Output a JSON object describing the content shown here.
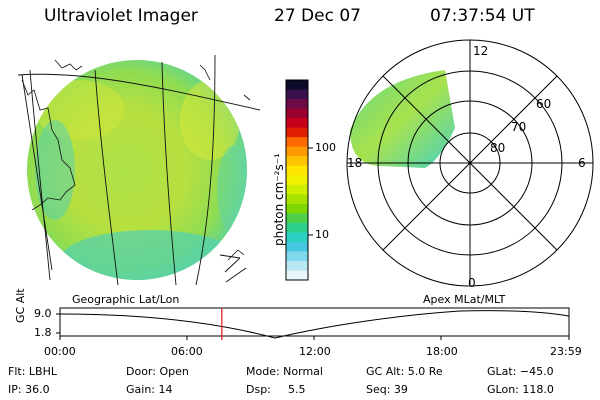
{
  "header": {
    "title": "Ultraviolet Imager",
    "date": "27 Dec 07",
    "time": "07:37:54 UT"
  },
  "colorbar": {
    "label": "photon cm⁻²s⁻¹",
    "ticks": [
      "100",
      "10"
    ],
    "colors": [
      "#0b0b2a",
      "#3a0f4e",
      "#6a0a46",
      "#9a0030",
      "#c8001a",
      "#e02000",
      "#ff6a00",
      "#ff9a00",
      "#ffc400",
      "#ffe600",
      "#f0f000",
      "#cfef00",
      "#a8e400",
      "#7dd800",
      "#4fd04a",
      "#2ecf8a",
      "#2ed0c4",
      "#46c8e0",
      "#7fd8ec",
      "#b8e8f4",
      "#e6f6fa"
    ]
  },
  "polar": {
    "labels": {
      "noon": "12",
      "midnight": "0",
      "dusk": "18",
      "dawn": "6",
      "lat60": "60",
      "lat70": "70",
      "lat80": "80"
    }
  },
  "timeline": {
    "left_title": "Geographic Lat/Lon",
    "right_title": "Apex MLat/MLT",
    "axis_label": "GC Alt",
    "y_ticks": [
      "9.0",
      "1.8"
    ],
    "x_ticks": [
      "00:00",
      "06:00",
      "12:00",
      "18:00",
      "23:59"
    ],
    "current_time_hours": 7.63
  },
  "status": {
    "filter": "Flt: LBHL",
    "ip": "IP: 36.0",
    "door": "Door: Open",
    "gain": "Gain: 14",
    "mode": "Mode: Normal",
    "dsp_label": "Dsp:",
    "dsp_value": "5.5",
    "gc_alt": "GC Alt: 5.0 Re",
    "seq": "Seq: 39",
    "glat": "GLat: −45.0",
    "glon": "GLon: 118.0"
  }
}
